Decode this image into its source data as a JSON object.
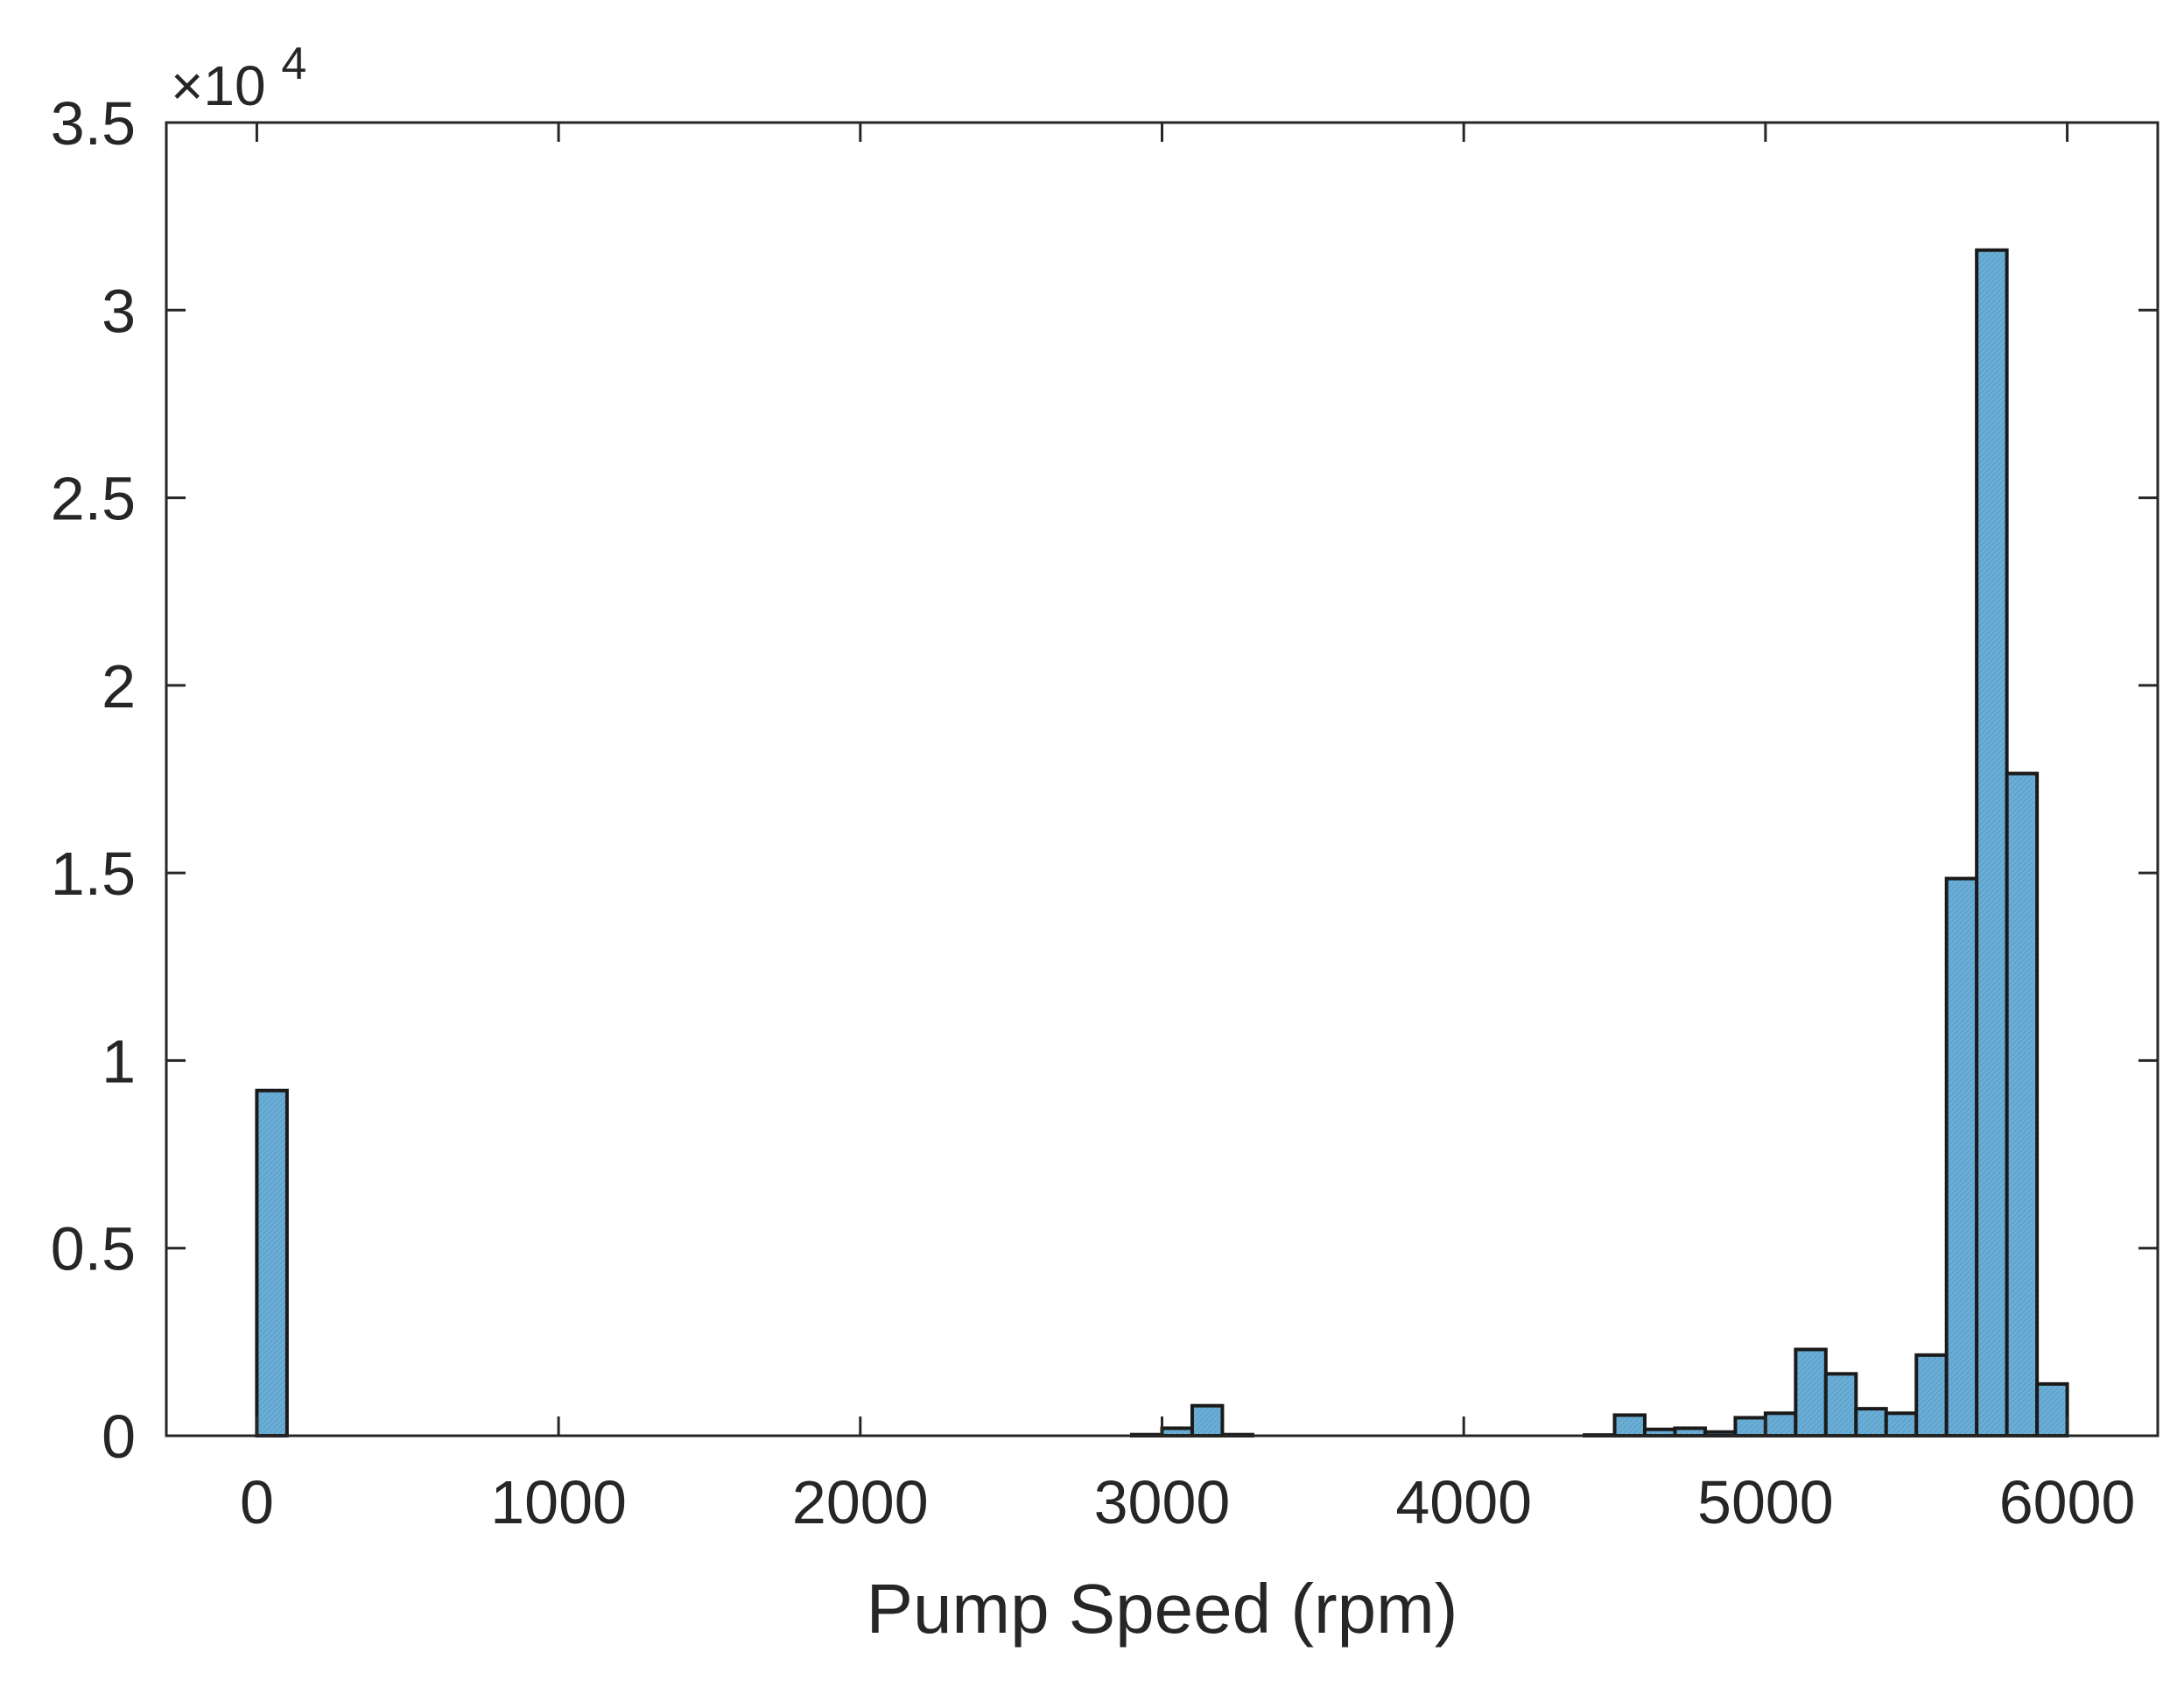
{
  "chart_data": {
    "type": "bar",
    "xlabel": "Pump Speed (rpm)",
    "ylabel": "",
    "exponent_label": "×10",
    "exponent_power": "4",
    "xlim": [
      -300,
      6300
    ],
    "ylim": [
      0,
      35000
    ],
    "x_ticks": [
      0,
      1000,
      2000,
      3000,
      4000,
      5000,
      6000
    ],
    "x_tick_labels": [
      "0",
      "1000",
      "2000",
      "3000",
      "4000",
      "5000",
      "6000"
    ],
    "y_ticks": [
      0,
      5000,
      10000,
      15000,
      20000,
      25000,
      30000,
      35000
    ],
    "y_tick_labels": [
      "0",
      "0.5",
      "1",
      "1.5",
      "2",
      "2.5",
      "3",
      "3.5"
    ],
    "bin_width": 100,
    "bins": [
      {
        "x": 0,
        "value": 9200
      },
      {
        "x": 2900,
        "value": 30
      },
      {
        "x": 3000,
        "value": 200
      },
      {
        "x": 3100,
        "value": 800
      },
      {
        "x": 3200,
        "value": 30
      },
      {
        "x": 4400,
        "value": 20
      },
      {
        "x": 4500,
        "value": 550
      },
      {
        "x": 4600,
        "value": 170
      },
      {
        "x": 4700,
        "value": 200
      },
      {
        "x": 4800,
        "value": 100
      },
      {
        "x": 4900,
        "value": 480
      },
      {
        "x": 5000,
        "value": 600
      },
      {
        "x": 5100,
        "value": 2300
      },
      {
        "x": 5200,
        "value": 1650
      },
      {
        "x": 5300,
        "value": 720
      },
      {
        "x": 5400,
        "value": 600
      },
      {
        "x": 5500,
        "value": 2150
      },
      {
        "x": 5600,
        "value": 14850
      },
      {
        "x": 5700,
        "value": 31600
      },
      {
        "x": 5800,
        "value": 17650
      },
      {
        "x": 5900,
        "value": 1380
      }
    ],
    "bar_color": "#6aaed6",
    "edge_color": "#1a1a1a",
    "grid": false,
    "box": true
  }
}
